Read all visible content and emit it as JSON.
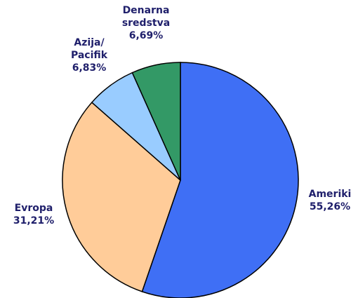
{
  "chart_data": {
    "type": "pie",
    "categories": [
      "Ameriki",
      "Evropa",
      "Azija/ Pacifik",
      "Denarna sredstva"
    ],
    "values": [
      55.26,
      31.21,
      6.83,
      6.69
    ],
    "value_labels": [
      "55,26%",
      "31,21%",
      "6,83%",
      "6,69%"
    ],
    "colors": [
      "#3f6ff5",
      "#ffcc99",
      "#99ccff",
      "#339966"
    ]
  }
}
